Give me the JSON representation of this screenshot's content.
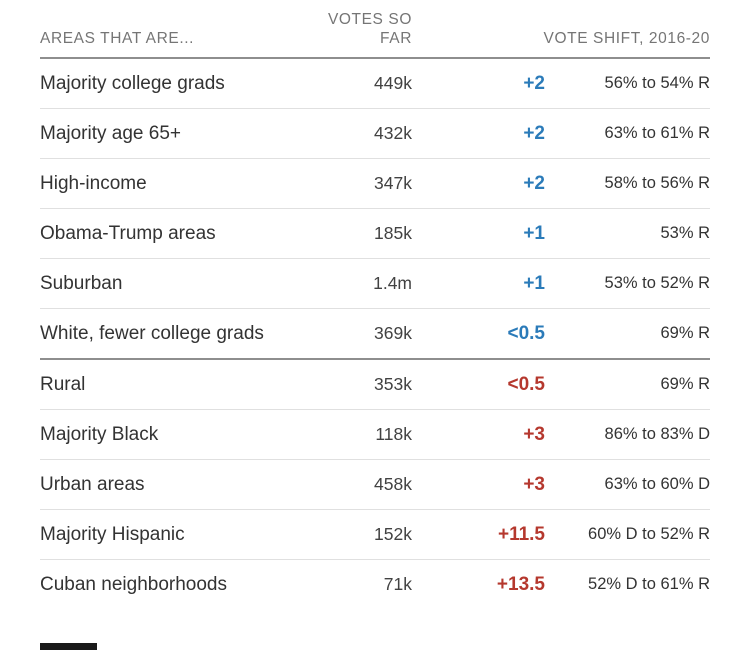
{
  "chart_data": {
    "type": "table",
    "title": "",
    "column_headers": {
      "areas": "AREAS THAT ARE...",
      "votes_line1": "VOTES SO",
      "votes_line2": "FAR",
      "shift": "VOTE SHIFT, 2016-20"
    },
    "rows": [
      {
        "label": "Majority college grads",
        "votes": "449k",
        "shift": "+2",
        "shift_toward": "D",
        "vote_share": "56% to 54% R",
        "section_end": false
      },
      {
        "label": "Majority age 65+",
        "votes": "432k",
        "shift": "+2",
        "shift_toward": "D",
        "vote_share": "63% to 61% R",
        "section_end": false
      },
      {
        "label": "High-income",
        "votes": "347k",
        "shift": "+2",
        "shift_toward": "D",
        "vote_share": "58% to 56% R",
        "section_end": false
      },
      {
        "label": "Obama-Trump areas",
        "votes": "185k",
        "shift": "+1",
        "shift_toward": "D",
        "vote_share": "53% R",
        "section_end": false
      },
      {
        "label": "Suburban",
        "votes": "1.4m",
        "shift": "+1",
        "shift_toward": "D",
        "vote_share": "53% to 52% R",
        "section_end": false
      },
      {
        "label": "White, fewer college grads",
        "votes": "369k",
        "shift": "<0.5",
        "shift_toward": "D",
        "vote_share": "69% R",
        "section_end": true
      },
      {
        "label": "Rural",
        "votes": "353k",
        "shift": "<0.5",
        "shift_toward": "R",
        "vote_share": "69% R",
        "section_end": false
      },
      {
        "label": "Majority Black",
        "votes": "118k",
        "shift": "+3",
        "shift_toward": "R",
        "vote_share": "86% to 83% D",
        "section_end": false
      },
      {
        "label": "Urban areas",
        "votes": "458k",
        "shift": "+3",
        "shift_toward": "R",
        "vote_share": "63% to 60% D",
        "section_end": false
      },
      {
        "label": "Majority Hispanic",
        "votes": "152k",
        "shift": "+11.5",
        "shift_toward": "R",
        "vote_share": "60% D to 52% R",
        "section_end": false
      },
      {
        "label": "Cuban neighborhoods",
        "votes": "71k",
        "shift": "+13.5",
        "shift_toward": "R",
        "vote_share": "52% D to 61% R",
        "section_end": false
      }
    ],
    "colors": {
      "shift_democratic": "#2b7bb9",
      "shift_republican": "#b5382e"
    }
  }
}
